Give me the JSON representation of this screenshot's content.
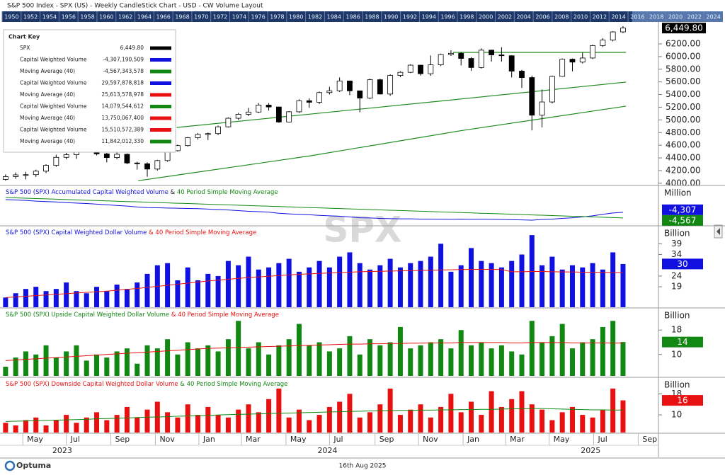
{
  "header": {
    "title": "S&P 500 Index - SPX (US) - Weekly CandleStick Chart - USD - CW Volume Layout",
    "watermark": "SPX"
  },
  "navigator": {
    "years": [
      1950,
      1952,
      1954,
      1956,
      1958,
      1960,
      1962,
      1964,
      1966,
      1968,
      1970,
      1972,
      1974,
      1976,
      1978,
      1980,
      1982,
      1984,
      1986,
      1988,
      1990,
      1992,
      1994,
      1996,
      1998,
      2000,
      2002,
      2004,
      2006,
      2008,
      2010,
      2012,
      2014,
      2016,
      2018,
      2020,
      2022,
      2024
    ]
  },
  "chart_key": {
    "title": "Chart Key",
    "rows": [
      {
        "label": "SPX",
        "value": "6,449.80",
        "color": "#000000"
      },
      {
        "label": "Capital Weighted Volume",
        "value": "-4,307,190,509",
        "color": "#1010e0"
      },
      {
        "label": "Moving Average (40)",
        "value": "-4,567,343,578",
        "color": "#118811"
      },
      {
        "label": "Capital Weighted Volume",
        "value": "29,597,878,818",
        "color": "#1010e0"
      },
      {
        "label": "Moving Average (40)",
        "value": "25,613,578,978",
        "color": "#e81010"
      },
      {
        "label": "Capital Weighted Volume",
        "value": "14,079,544,612",
        "color": "#118811"
      },
      {
        "label": "Moving Average (40)",
        "value": "13,750,067,400",
        "color": "#e81010"
      },
      {
        "label": "Capital Weighted Volume",
        "value": "15,510,572,389",
        "color": "#e81010"
      },
      {
        "label": "Moving Average (40)",
        "value": "11,842,012,330",
        "color": "#118811"
      }
    ]
  },
  "time_axis": {
    "xlim": [
      -0.55,
      64.5
    ],
    "xticks": [
      {
        "value": 1.7,
        "label": "May"
      },
      {
        "value": 6,
        "label": "Jul"
      },
      {
        "value": 10.4,
        "label": "Sep"
      },
      {
        "value": 14.8,
        "label": "Nov"
      },
      {
        "value": 19.1,
        "label": "Jan"
      },
      {
        "value": 23.3,
        "label": "Mar"
      },
      {
        "value": 27.7,
        "label": "May"
      },
      {
        "value": 32,
        "label": "Jul"
      },
      {
        "value": 36.5,
        "label": "Sep"
      },
      {
        "value": 40.8,
        "label": "Nov"
      },
      {
        "value": 45.2,
        "label": "Jan"
      },
      {
        "value": 49.4,
        "label": "Mar"
      },
      {
        "value": 53.7,
        "label": "May"
      },
      {
        "value": 58.1,
        "label": "Jul"
      },
      {
        "value": 62.5,
        "label": "Sep"
      }
    ],
    "years": [
      {
        "value": 5.6,
        "label": "2023"
      },
      {
        "value": 31.8,
        "label": "2024"
      },
      {
        "value": 57.8,
        "label": "2025"
      }
    ]
  },
  "chart_data": [
    {
      "type": "candlestick",
      "ylim": [
        3965,
        6535
      ],
      "last_label": "6,449.80",
      "up_color": "#ffffff",
      "down_color": "#000000",
      "yticks": [
        {
          "value": 4000,
          "label": "4000.00"
        },
        {
          "value": 4200,
          "label": "4200.00"
        },
        {
          "value": 4400,
          "label": "4400.00"
        },
        {
          "value": 4600,
          "label": "4600.00"
        },
        {
          "value": 4800,
          "label": "4800.00"
        },
        {
          "value": 5000,
          "label": "5000.00"
        },
        {
          "value": 5200,
          "label": "5200.00"
        },
        {
          "value": 5400,
          "label": "5400.00"
        },
        {
          "value": 5600,
          "label": "5600.00"
        },
        {
          "value": 5800,
          "label": "5800.00"
        },
        {
          "value": 6000,
          "label": "6000.00"
        },
        {
          "value": 6200,
          "label": "6200.00"
        }
      ],
      "open": [
        4060,
        4105,
        4133,
        4136,
        4191,
        4282,
        4409,
        4450,
        4505,
        4582,
        4464,
        4405,
        4457,
        4320,
        4308,
        4224,
        4358,
        4514,
        4594,
        4719,
        4770,
        4784,
        4891,
        5026,
        5089,
        5124,
        5234,
        5204,
        4967,
        5128,
        5303,
        5278,
        5431,
        5460,
        5615,
        5459,
        5344,
        5634,
        5408,
        5702,
        5751,
        5864,
        5729,
        5870,
        6032,
        6051,
        5970,
        5827,
        6101,
        6026,
        6013,
        5770,
        5668,
        5074,
        5283,
        5687,
        5958,
        5912,
        5977,
        6173,
        6260,
        6389
      ],
      "high": [
        4140,
        4170,
        4180,
        4215,
        4300,
        4450,
        4480,
        4530,
        4607,
        4600,
        4480,
        4490,
        4470,
        4340,
        4330,
        4370,
        4520,
        4610,
        4730,
        4793,
        4800,
        4910,
        5040,
        5111,
        5190,
        5265,
        5264,
        5210,
        5140,
        5325,
        5341,
        5447,
        5523,
        5670,
        5620,
        5460,
        5650,
        5650,
        5720,
        5767,
        5878,
        5870,
        6017,
        6045,
        6099,
        6070,
        5990,
        6128,
        6110,
        6147,
        6020,
        5790,
        5700,
        5480,
        5700,
        5970,
        5970,
        6060,
        6187,
        6290,
        6400,
        6480
      ],
      "low": [
        4040,
        4070,
        4060,
        4100,
        4160,
        4260,
        4380,
        4385,
        4490,
        4440,
        4330,
        4380,
        4300,
        4216,
        4103,
        4200,
        4340,
        4500,
        4580,
        4690,
        4682,
        4760,
        4880,
        5000,
        5060,
        5110,
        5146,
        4953,
        4960,
        5110,
        5191,
        5250,
        5400,
        5440,
        5390,
        5120,
        5330,
        5402,
        5380,
        5674,
        5740,
        5700,
        5696,
        5850,
        6010,
        5860,
        5773,
        5810,
        5920,
        5920,
        5670,
        5504,
        4835,
        4880,
        5260,
        5680,
        5767,
        5890,
        5960,
        6150,
        6240,
        6370
      ],
      "close": [
        4105,
        4133,
        4136,
        4191,
        4282,
        4409,
        4450,
        4505,
        4582,
        4464,
        4405,
        4457,
        4320,
        4308,
        4224,
        4358,
        4514,
        4594,
        4719,
        4770,
        4784,
        4891,
        5026,
        5089,
        5124,
        5234,
        5204,
        4967,
        5128,
        5303,
        5278,
        5431,
        5460,
        5615,
        5459,
        5344,
        5634,
        5408,
        5702,
        5751,
        5864,
        5729,
        5870,
        6032,
        6051,
        5970,
        5827,
        6101,
        6026,
        6013,
        5770,
        5668,
        5074,
        5283,
        5687,
        5958,
        5912,
        5977,
        6173,
        6260,
        6389,
        6449.8
      ],
      "lines": [
        {
          "color": "#1e8c1e",
          "x": [
            44.2,
            61.3
          ],
          "values": [
            6066,
            6066
          ]
        },
        {
          "color": "#1e8c1e",
          "x": [
            16.9,
            30,
            45,
            61.3
          ],
          "values": [
            4880,
            5090,
            5330,
            5597
          ]
        },
        {
          "color": "#1e8c1e",
          "x": [
            13.1,
            30,
            45,
            61.3
          ],
          "values": [
            4040,
            4430,
            4830,
            5217
          ]
        }
      ]
    },
    {
      "type": "line",
      "title": [
        {
          "text": "S&P 500 (SPX)  Accumulated Capital Weighted Volume",
          "color": "#1010e0"
        },
        {
          "text": " & ",
          "color": "#222222"
        },
        {
          "text": "40 Period Simple Moving Average",
          "color": "#118811"
        }
      ],
      "y_unit": "Million",
      "ylim": [
        -4900,
        -3100
      ],
      "series": [
        {
          "type": "line",
          "color": "#1010e0",
          "last_label": "-4,307",
          "values": [
            -3720,
            -3740,
            -3760,
            -3790,
            -3810,
            -3830,
            -3860,
            -3880,
            -3900,
            -3930,
            -3960,
            -3990,
            -4020,
            -4060,
            -4090,
            -4100,
            -4110,
            -4120,
            -4130,
            -4140,
            -4160,
            -4180,
            -4200,
            -4230,
            -4260,
            -4280,
            -4300,
            -4350,
            -4380,
            -4400,
            -4420,
            -4450,
            -4470,
            -4490,
            -4520,
            -4560,
            -4570,
            -4590,
            -4600,
            -4610,
            -4610,
            -4620,
            -4620,
            -4625,
            -4630,
            -4620,
            -4630,
            -4625,
            -4630,
            -4640,
            -4650,
            -4660,
            -4670,
            -4640,
            -4620,
            -4590,
            -4560,
            -4520,
            -4470,
            -4400,
            -4340,
            -4307
          ]
        },
        {
          "type": "line",
          "color": "#118811",
          "last_label": "-4,567",
          "values": [
            -3625,
            -3640,
            -3656,
            -3671,
            -3687,
            -3702,
            -3718,
            -3733,
            -3749,
            -3764,
            -3779,
            -3795,
            -3810,
            -3826,
            -3841,
            -3857,
            -3872,
            -3888,
            -3903,
            -3918,
            -3934,
            -3949,
            -3965,
            -3980,
            -3996,
            -4011,
            -4026,
            -4042,
            -4057,
            -4073,
            -4088,
            -4104,
            -4119,
            -4135,
            -4150,
            -4165,
            -4181,
            -4196,
            -4212,
            -4227,
            -4243,
            -4258,
            -4273,
            -4289,
            -4304,
            -4320,
            -4335,
            -4351,
            -4366,
            -4382,
            -4397,
            -4412,
            -4428,
            -4443,
            -4459,
            -4474,
            -4490,
            -4505,
            -4520,
            -4536,
            -4551,
            -4567
          ]
        }
      ]
    },
    {
      "type": "bar",
      "title": [
        {
          "text": "S&P 500 (SPX)  Capital Weighted Dollar Volume",
          "color": "#1010e0"
        },
        {
          "text": " & 40 Period Simple Moving Average",
          "color": "#e81010"
        }
      ],
      "y_unit": "Billion",
      "ylim": [
        9.5,
        47
      ],
      "yticks": [
        19,
        24,
        34,
        39
      ],
      "series": [
        {
          "type": "bar",
          "color": "#1010e0",
          "last_label": "30",
          "values": [
            14,
            16,
            18,
            19,
            17,
            18,
            21,
            17,
            16,
            19,
            17,
            20,
            18,
            21,
            25,
            29,
            30,
            22,
            28,
            22,
            25,
            24,
            31,
            29,
            33,
            27,
            28,
            30,
            32,
            26,
            28,
            31,
            28,
            33,
            35,
            30,
            27,
            29,
            32,
            28,
            30,
            31,
            33,
            39,
            26,
            29,
            37,
            31,
            30,
            28,
            31,
            34,
            43,
            29,
            33,
            27,
            29,
            28,
            30,
            27,
            35,
            29.6
          ]
        },
        {
          "type": "line",
          "color": "#e81010",
          "values": [
            14.0,
            14.3,
            14.6,
            14.9,
            15.2,
            15.5,
            15.8,
            16.1,
            16.4,
            16.7,
            17.0,
            17.4,
            17.8,
            18.2,
            18.7,
            19.2,
            19.7,
            20.2,
            20.7,
            21.2,
            21.7,
            22.1,
            22.5,
            22.9,
            23.3,
            23.6,
            23.9,
            24.2,
            24.5,
            24.8,
            25.0,
            25.2,
            25.4,
            25.6,
            25.8,
            26.0,
            26.1,
            26.2,
            26.3,
            26.4,
            26.5,
            26.6,
            26.7,
            26.8,
            26.9,
            27.0,
            27.1,
            27.1,
            27.1,
            27.0,
            26.0,
            26.0,
            26.1,
            26.1,
            26.0,
            25.9,
            25.9,
            25.8,
            25.8,
            25.7,
            25.6,
            25.6
          ]
        }
      ]
    },
    {
      "type": "bar",
      "title": [
        {
          "text": "S&P 500 (SPX)  Upside Capital Weighted Dollar Volume",
          "color": "#118811"
        },
        {
          "text": " & 40 Period Simple Moving Average",
          "color": "#e81010"
        }
      ],
      "y_unit": "Billion",
      "ylim": [
        3,
        25
      ],
      "yticks": [
        10,
        18
      ],
      "series": [
        {
          "type": "bar",
          "color": "#118811",
          "last_label": "14",
          "values": [
            6,
            9,
            11,
            10,
            13,
            9,
            11,
            13,
            8,
            10,
            9,
            11,
            12,
            7,
            13,
            12,
            15,
            10,
            14,
            12,
            13,
            11,
            15,
            21,
            12,
            14,
            10,
            13,
            15,
            20,
            13,
            14,
            11,
            12,
            16,
            10,
            15,
            13,
            14,
            19,
            12,
            13,
            14,
            15,
            12,
            18,
            13,
            14,
            12,
            13,
            11,
            10,
            21,
            14,
            16,
            20,
            12,
            14,
            15,
            19,
            21,
            14.08
          ]
        },
        {
          "type": "line",
          "color": "#e81010",
          "values": [
            8.0,
            8.2,
            8.4,
            8.6,
            8.8,
            9.0,
            9.2,
            9.4,
            9.6,
            9.8,
            10.0,
            10.2,
            10.4,
            10.6,
            10.8,
            11.0,
            11.2,
            11.4,
            11.6,
            11.8,
            12.0,
            12.1,
            12.2,
            12.3,
            12.4,
            12.5,
            12.6,
            12.7,
            12.8,
            12.9,
            13.0,
            13.1,
            13.2,
            13.3,
            13.4,
            13.4,
            13.5,
            13.5,
            13.6,
            13.6,
            13.7,
            13.7,
            13.8,
            13.8,
            13.8,
            13.9,
            13.9,
            13.9,
            13.9,
            13.9,
            13.8,
            13.8,
            13.9,
            13.9,
            13.9,
            13.9,
            13.8,
            13.8,
            13.8,
            13.8,
            13.75,
            13.75
          ]
        }
      ]
    },
    {
      "type": "bar",
      "title": [
        {
          "text": "S&P 500 (SPX)  Downside Capital Weighted Dollar Volume",
          "color": "#e81010"
        },
        {
          "text": " & 40 Period Simple Moving Average",
          "color": "#118811"
        }
      ],
      "y_unit": "Billion",
      "ylim": [
        3.3,
        24
      ],
      "yticks": [
        10,
        18
      ],
      "series": [
        {
          "type": "bar",
          "color": "#e81010",
          "last_label": "16",
          "values": [
            7,
            6,
            8,
            9,
            6,
            8,
            10,
            7,
            9,
            11,
            8,
            10,
            13,
            9,
            12,
            15,
            11,
            9,
            14,
            10,
            13,
            10,
            9,
            12,
            14,
            11,
            16,
            20,
            9,
            12,
            8,
            10,
            13,
            15,
            18,
            9,
            11,
            14,
            20,
            10,
            12,
            14,
            9,
            13,
            18,
            11,
            15,
            10,
            19,
            13,
            16,
            19,
            14,
            12,
            8,
            11,
            13,
            10,
            9,
            12,
            20,
            15.51
          ]
        },
        {
          "type": "line",
          "color": "#118811",
          "values": [
            7.5,
            7.6,
            7.7,
            7.8,
            7.9,
            8.0,
            8.1,
            8.2,
            8.3,
            8.5,
            8.6,
            8.7,
            8.8,
            9.0,
            9.1,
            9.2,
            9.3,
            9.5,
            9.6,
            9.7,
            9.8,
            10.0,
            10.1,
            10.2,
            10.3,
            10.4,
            10.5,
            10.6,
            10.7,
            10.8,
            10.9,
            11.0,
            11.1,
            11.2,
            11.3,
            11.4,
            11.5,
            11.6,
            11.6,
            11.7,
            11.7,
            11.8,
            11.8,
            11.9,
            11.9,
            12.0,
            12.0,
            12.1,
            12.1,
            12.2,
            12.3,
            12.3,
            12.4,
            12.4,
            12.3,
            12.2,
            12.1,
            12.0,
            11.9,
            11.9,
            11.84,
            11.84
          ]
        }
      ]
    }
  ],
  "footer": {
    "logo": "Optuma",
    "date": "16th Aug 2025"
  }
}
